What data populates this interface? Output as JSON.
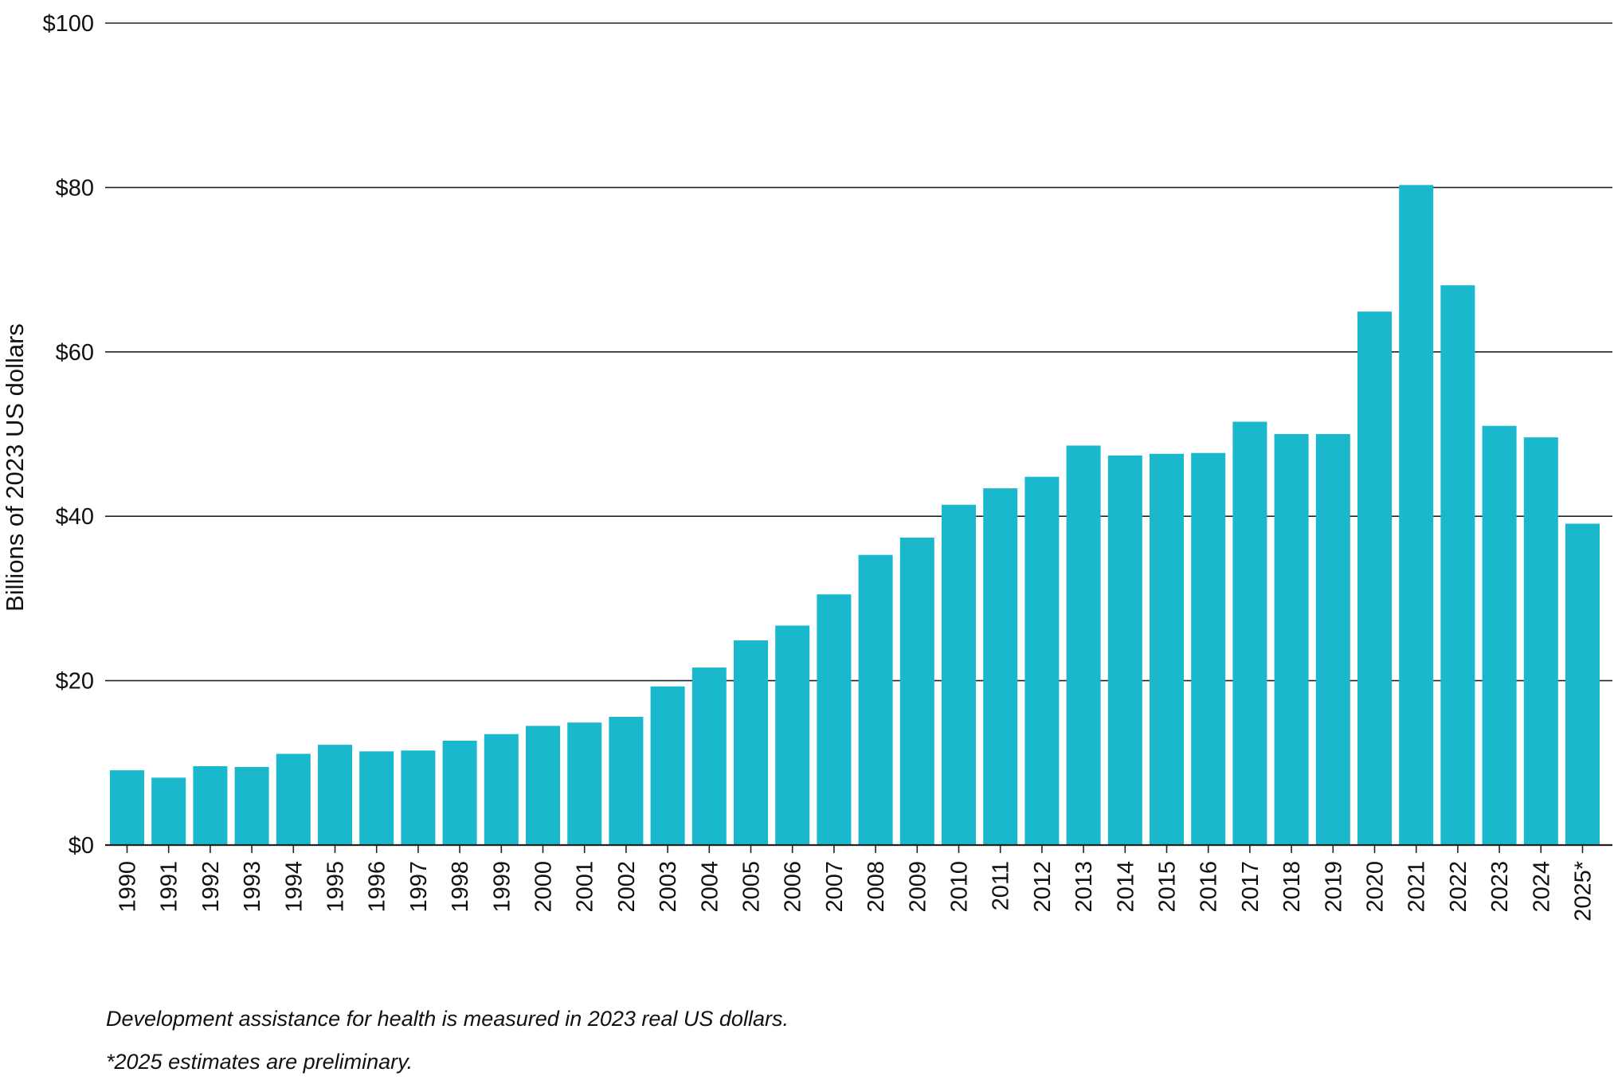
{
  "chart_data": {
    "type": "bar",
    "title": "",
    "xlabel": "",
    "ylabel": "Billions of 2023 US dollars",
    "ylim": [
      0,
      100
    ],
    "yticks": [
      0,
      20,
      40,
      60,
      80,
      100
    ],
    "ytick_labels": [
      "$0",
      "$20",
      "$40",
      "$60",
      "$80",
      "$100"
    ],
    "grid": true,
    "bar_color": "#19B8CD",
    "categories": [
      "1990",
      "1991",
      "1992",
      "1993",
      "1994",
      "1995",
      "1996",
      "1997",
      "1998",
      "1999",
      "2000",
      "2001",
      "2002",
      "2003",
      "2004",
      "2005",
      "2006",
      "2007",
      "2008",
      "2009",
      "2010",
      "2011",
      "2012",
      "2013",
      "2014",
      "2015",
      "2016",
      "2017",
      "2018",
      "2019",
      "2020",
      "2021",
      "2022",
      "2023",
      "2024",
      "2025*"
    ],
    "values": [
      9.1,
      8.2,
      9.6,
      9.5,
      11.1,
      12.2,
      11.4,
      11.5,
      12.7,
      13.5,
      14.5,
      14.9,
      15.6,
      19.3,
      21.6,
      24.9,
      26.7,
      30.5,
      35.3,
      37.4,
      41.4,
      43.4,
      44.8,
      48.6,
      47.4,
      47.6,
      47.7,
      51.5,
      50.0,
      50.0,
      64.9,
      80.3,
      68.1,
      51.0,
      49.6,
      39.1
    ]
  },
  "notes": {
    "measure": "Development assistance for health is measured in 2023 real US dollars.",
    "preliminary": "*2025 estimates are preliminary."
  }
}
